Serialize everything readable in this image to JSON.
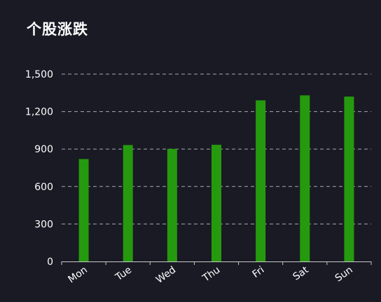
{
  "title": "个股涨跌",
  "colors": {
    "background": "#191a24",
    "bar": "#259a0e",
    "grid": "#a8a8b0",
    "axis": "#c8c8c8",
    "text": "#ffffff"
  },
  "chart_data": {
    "type": "bar",
    "categories": [
      "Mon",
      "Tue",
      "Wed",
      "Thu",
      "Fri",
      "Sat",
      "Sun"
    ],
    "values": [
      820,
      932,
      901,
      934,
      1290,
      1330,
      1320
    ],
    "yticks": [
      0,
      300,
      600,
      900,
      1200,
      1500
    ],
    "ytick_labels": [
      "0",
      "300",
      "600",
      "900",
      "1,200",
      "1,500"
    ],
    "ylim": [
      0,
      1500
    ],
    "grid": "horizontal-dashed",
    "legend": "none"
  }
}
